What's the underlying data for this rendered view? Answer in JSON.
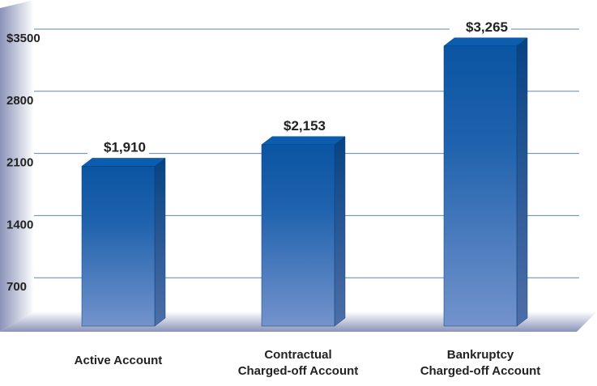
{
  "chart_data": {
    "type": "bar3d",
    "categories": [
      [
        "Active Account"
      ],
      [
        "Contractual",
        "Charged-off Account"
      ],
      [
        "Bankruptcy",
        "Charged-off Account"
      ]
    ],
    "values": [
      1910,
      2153,
      3265
    ],
    "value_labels": [
      "$1,910",
      "$2,153",
      "$3,265"
    ],
    "color": "#0a5aa8",
    "ylim": [
      0,
      3500
    ],
    "yticks": [
      700,
      1400,
      2100,
      2800,
      {
        "value": 3500,
        "label": "$3500"
      }
    ],
    "grid": true
  }
}
